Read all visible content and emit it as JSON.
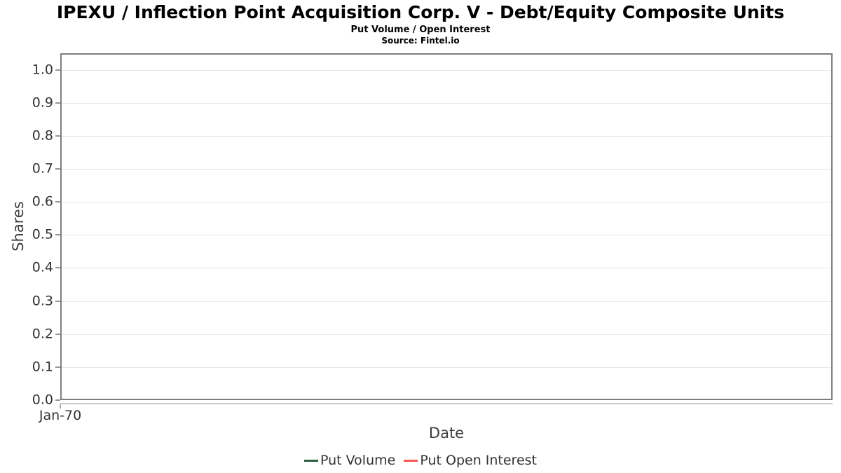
{
  "header": {
    "title": "IPEXU / Inflection Point Acquisition Corp. V - Debt/Equity Composite Units",
    "subtitle": "Put Volume / Open Interest",
    "source": "Source: Fintel.io"
  },
  "chart_data": {
    "type": "line",
    "title": "IPEXU / Inflection Point Acquisition Corp. V - Debt/Equity Composite Units",
    "subtitle": "Put Volume / Open Interest",
    "source": "Source: Fintel.io",
    "xlabel": "Date",
    "ylabel": "Shares",
    "ylim": [
      0,
      1.05
    ],
    "yticks": [
      0.0,
      0.1,
      0.2,
      0.3,
      0.4,
      0.5,
      0.6,
      0.7,
      0.8,
      0.9,
      1.0
    ],
    "ytick_labels": [
      "0.0",
      "0.1",
      "0.2",
      "0.3",
      "0.4",
      "0.5",
      "0.6",
      "0.7",
      "0.8",
      "0.9",
      "1.0"
    ],
    "x_ticks": [
      {
        "label": "Jan-70",
        "pos": 0
      }
    ],
    "grid": true,
    "legend_position": "bottom",
    "series": [
      {
        "name": "Put Volume",
        "color": "#2e5e41",
        "x": [],
        "values": []
      },
      {
        "name": "Put Open Interest",
        "color": "#f95753",
        "x": [],
        "values": []
      }
    ]
  },
  "colors": {
    "background": "#ffffff",
    "plot_border": "#7e7e7e",
    "gridline": "#e7e7e7",
    "axis_line": "#c9c9c9",
    "tick_mark": "#989898",
    "tick_label": "#333333",
    "axis_label": "#3d3d3d",
    "legend_text": "#333333",
    "put_volume": "#2e5e41",
    "put_open_interest": "#f95753"
  }
}
